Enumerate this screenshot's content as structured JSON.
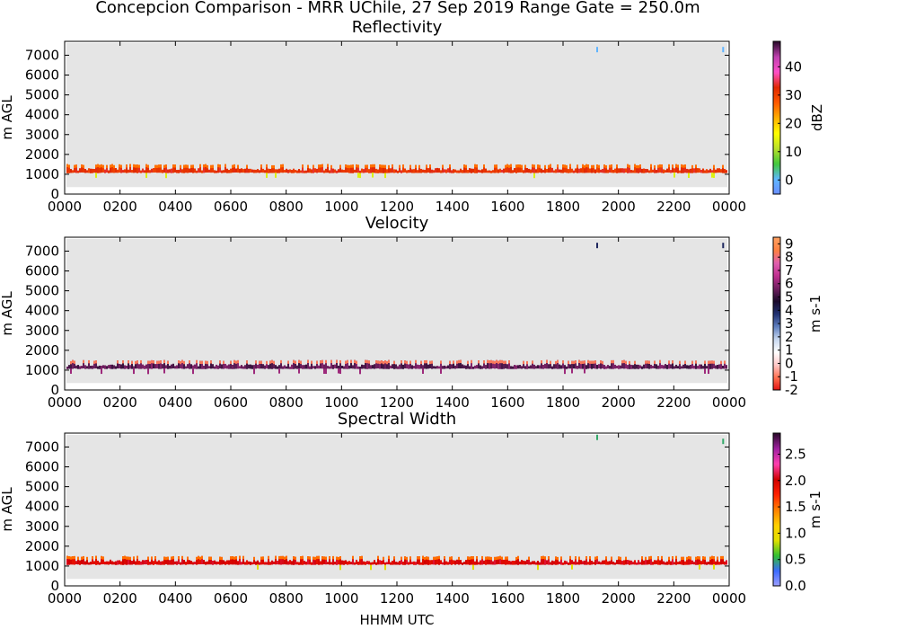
{
  "figure": {
    "title": "Concepcion Comparison - MRR UChile, 27 Sep 2019 Range Gate = 250.0m",
    "xlabel": "HHMM UTC"
  },
  "colors": {
    "plot_background": "#e5e5e5",
    "reflectivity_cmap": [
      "#6a8cff",
      "#5fb7ff",
      "#41c83c",
      "#b8e02a",
      "#ffff00",
      "#ffb000",
      "#ff5a00",
      "#e02800",
      "#ff50c8",
      "#c040b0",
      "#2a0a2a"
    ],
    "velocity_cmap": [
      "#e01010",
      "#ff7050",
      "#ffc8c8",
      "#ffffff",
      "#c8d8f0",
      "#6080c0",
      "#203070",
      "#1a0a2a",
      "#702060",
      "#c03090",
      "#e060b0",
      "#ff8040",
      "#ffa060"
    ],
    "spectral_width_cmap": [
      "#a0a0ff",
      "#3b6bff",
      "#30c030",
      "#e0e000",
      "#ffd000",
      "#ff8000",
      "#ff2000",
      "#d00000",
      "#ff40b0",
      "#a020a0",
      "#2a0a2a"
    ]
  },
  "chart_data": [
    {
      "type": "heatmap",
      "title": "Reflectivity",
      "xlabel": "",
      "ylabel": "m AGL",
      "xlim": [
        0,
        24
      ],
      "ylim": [
        0,
        7700
      ],
      "x_ticks": [
        "0000",
        "0200",
        "0400",
        "0600",
        "0800",
        "1000",
        "1200",
        "1400",
        "1600",
        "1800",
        "2000",
        "2200",
        "0000"
      ],
      "y_ticks": [
        0,
        1000,
        2000,
        3000,
        4000,
        5000,
        6000,
        7000
      ],
      "colorbar": {
        "label": "dBZ",
        "range": [
          -5,
          49
        ],
        "ticks": [
          "0",
          "10",
          "20",
          "30",
          "40"
        ],
        "tick_values": [
          0,
          10,
          20,
          30,
          40
        ]
      },
      "layer": {
        "base_m": 1000,
        "top_m": 1500,
        "typical": 32,
        "variation": "orange tops 25-28, green dips 10-18"
      },
      "sparse_echoes_m": [
        {
          "x": 19.2,
          "y": 7300
        },
        {
          "x": 23.75,
          "y": 7300
        }
      ]
    },
    {
      "type": "heatmap",
      "title": "Velocity",
      "xlabel": "",
      "ylabel": "m AGL",
      "xlim": [
        0,
        24
      ],
      "ylim": [
        0,
        7700
      ],
      "x_ticks": [
        "0000",
        "0200",
        "0400",
        "0600",
        "0800",
        "1000",
        "1200",
        "1400",
        "1600",
        "1800",
        "2000",
        "2200",
        "0000"
      ],
      "y_ticks": [
        0,
        1000,
        2000,
        3000,
        4000,
        5000,
        6000,
        7000
      ],
      "colorbar": {
        "label": "m s-1",
        "range": [
          -2,
          9.5
        ],
        "ticks": [
          "-2",
          "-1",
          "0",
          "1",
          "2",
          "3",
          "4",
          "5",
          "6",
          "7",
          "8",
          "9"
        ],
        "tick_values": [
          -2,
          -1,
          0,
          1,
          2,
          3,
          4,
          5,
          6,
          7,
          8,
          9
        ]
      },
      "layer": {
        "base_m": 1000,
        "top_m": 1500,
        "typical": 5.5,
        "variation": "orange tops 8-9"
      },
      "sparse_echoes_m": [
        {
          "x": 19.2,
          "y": 7300
        },
        {
          "x": 23.75,
          "y": 7300
        }
      ]
    },
    {
      "type": "heatmap",
      "title": "Spectral Width",
      "xlabel": "HHMM UTC",
      "ylabel": "m AGL",
      "xlim": [
        0,
        24
      ],
      "ylim": [
        0,
        7700
      ],
      "x_ticks": [
        "0000",
        "0200",
        "0400",
        "0600",
        "0800",
        "1000",
        "1200",
        "1400",
        "1600",
        "1800",
        "2000",
        "2200",
        "0000"
      ],
      "y_ticks": [
        0,
        1000,
        2000,
        3000,
        4000,
        5000,
        6000,
        7000
      ],
      "colorbar": {
        "label": "m s-1",
        "range": [
          0,
          2.9
        ],
        "ticks": [
          "0.0",
          "0.5",
          "1.0",
          "1.5",
          "2.0",
          "2.5"
        ],
        "tick_values": [
          0,
          0.5,
          1.0,
          1.5,
          2.0,
          2.5
        ]
      },
      "layer": {
        "base_m": 1000,
        "top_m": 1500,
        "typical": 2.0,
        "variation": "yellow tops 1.3-1.7, green dips 0.7-1.0"
      },
      "sparse_echoes_m": [
        {
          "x": 19.2,
          "y": 7500
        },
        {
          "x": 23.75,
          "y": 7300
        }
      ]
    }
  ]
}
